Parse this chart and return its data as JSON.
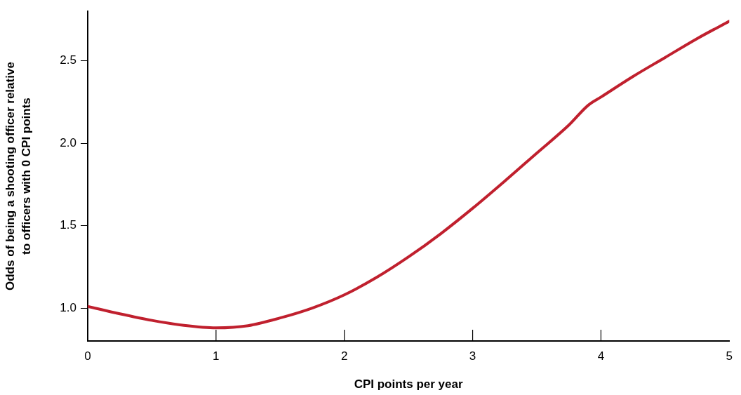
{
  "chart_data": {
    "type": "line",
    "xlabel": "CPI points per year",
    "ylabel": "Odds of being a shooting officer relative\nto officers with 0 CPI points",
    "x": [
      0,
      0.25,
      0.5,
      0.75,
      1,
      1.25,
      1.5,
      1.75,
      2,
      2.25,
      2.5,
      2.75,
      3,
      3.25,
      3.5,
      3.75,
      3.9,
      4,
      4.25,
      4.5,
      4.75,
      5
    ],
    "series": [
      {
        "color": "#c0202e",
        "values": [
          1.01,
          0.965,
          0.925,
          0.895,
          0.88,
          0.893,
          0.94,
          1.0,
          1.08,
          1.185,
          1.31,
          1.45,
          1.605,
          1.77,
          1.94,
          2.11,
          2.23,
          2.28,
          2.405,
          2.52,
          2.635,
          2.74
        ]
      }
    ],
    "xlim": [
      0,
      5
    ],
    "xticks": [
      0,
      1,
      2,
      3,
      4,
      5
    ],
    "ylim": [
      0.8,
      2.8
    ],
    "yticks": [
      {
        "value": 1,
        "label": "1.0"
      },
      1.5,
      {
        "value": 2,
        "label": "2.0"
      },
      2.5
    ],
    "grid": false,
    "legend": false,
    "marker": "none",
    "line_style": "solid"
  }
}
